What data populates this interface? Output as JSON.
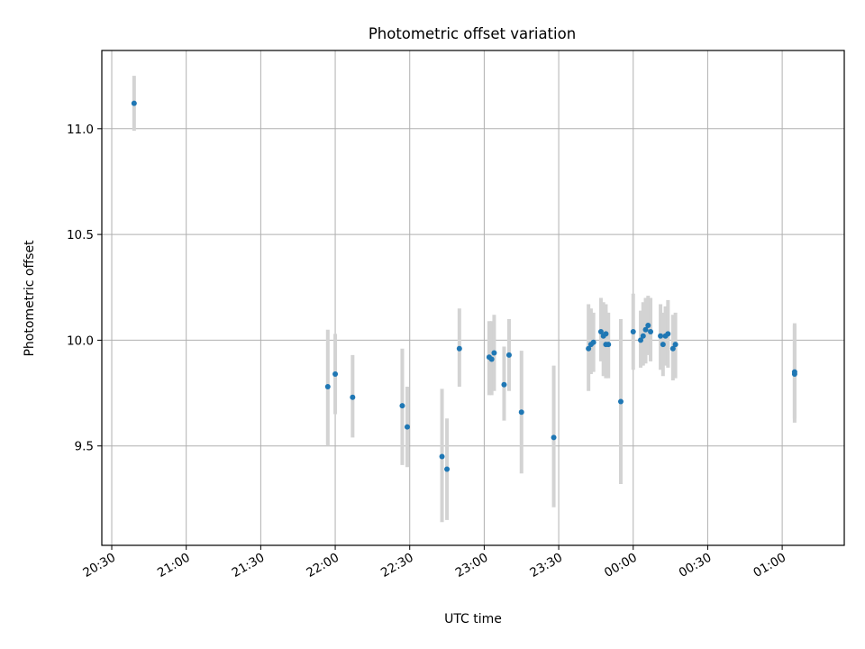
{
  "chart_data": {
    "type": "scatter",
    "title": "Photometric offset variation",
    "xlabel": "UTC time",
    "ylabel": "Photometric offset",
    "error_bars": true,
    "grid": true,
    "x_range": [
      "20:26",
      "01:25"
    ],
    "ylim": [
      9.03,
      11.37
    ],
    "x_ticks": [
      "20:30",
      "21:00",
      "21:30",
      "22:00",
      "22:30",
      "23:00",
      "23:30",
      "00:00",
      "00:30",
      "01:00"
    ],
    "y_ticks": [
      "9.5",
      "10.0",
      "10.5",
      "11.0"
    ],
    "colors": {
      "point": "#1f77b4",
      "error_bar": "#d3d3d3",
      "grid": "#b0b0b0",
      "axes": "#000000"
    },
    "points": [
      {
        "t": "20:39",
        "y": 11.12,
        "lo": 10.99,
        "hi": 11.25
      },
      {
        "t": "21:57",
        "y": 9.78,
        "lo": 9.5,
        "hi": 10.05
      },
      {
        "t": "22:00",
        "y": 9.84,
        "lo": 9.65,
        "hi": 10.03
      },
      {
        "t": "22:07",
        "y": 9.73,
        "lo": 9.54,
        "hi": 9.93
      },
      {
        "t": "22:27",
        "y": 9.69,
        "lo": 9.41,
        "hi": 9.96
      },
      {
        "t": "22:29",
        "y": 9.59,
        "lo": 9.4,
        "hi": 9.78
      },
      {
        "t": "22:43",
        "y": 9.45,
        "lo": 9.14,
        "hi": 9.77
      },
      {
        "t": "22:45",
        "y": 9.39,
        "lo": 9.15,
        "hi": 9.63
      },
      {
        "t": "22:50",
        "y": 9.96,
        "lo": 9.78,
        "hi": 10.15
      },
      {
        "t": "23:02",
        "y": 9.92,
        "lo": 9.74,
        "hi": 10.09
      },
      {
        "t": "23:03",
        "y": 9.91,
        "lo": 9.74,
        "hi": 10.09
      },
      {
        "t": "23:04",
        "y": 9.94,
        "lo": 9.76,
        "hi": 10.12
      },
      {
        "t": "23:08",
        "y": 9.79,
        "lo": 9.62,
        "hi": 9.97
      },
      {
        "t": "23:10",
        "y": 9.93,
        "lo": 9.76,
        "hi": 10.1
      },
      {
        "t": "23:15",
        "y": 9.66,
        "lo": 9.37,
        "hi": 9.95
      },
      {
        "t": "23:28",
        "y": 9.54,
        "lo": 9.21,
        "hi": 9.88
      },
      {
        "t": "23:42",
        "y": 9.96,
        "lo": 9.76,
        "hi": 10.17
      },
      {
        "t": "23:43",
        "y": 9.98,
        "lo": 9.84,
        "hi": 10.15
      },
      {
        "t": "23:44",
        "y": 9.99,
        "lo": 9.85,
        "hi": 10.13
      },
      {
        "t": "23:47",
        "y": 10.04,
        "lo": 9.9,
        "hi": 10.2
      },
      {
        "t": "23:48",
        "y": 10.02,
        "lo": 9.83,
        "hi": 10.18
      },
      {
        "t": "23:49",
        "y": 9.98,
        "lo": 9.82,
        "hi": 10.14
      },
      {
        "t": "23:49",
        "y": 10.03,
        "lo": 9.88,
        "hi": 10.17
      },
      {
        "t": "23:50",
        "y": 9.98,
        "lo": 9.82,
        "hi": 10.13
      },
      {
        "t": "23:55",
        "y": 9.71,
        "lo": 9.32,
        "hi": 10.1
      },
      {
        "t": "00:00",
        "y": 10.04,
        "lo": 9.86,
        "hi": 10.22
      },
      {
        "t": "00:03",
        "y": 10.0,
        "lo": 9.87,
        "hi": 10.14
      },
      {
        "t": "00:04",
        "y": 10.02,
        "lo": 9.88,
        "hi": 10.18
      },
      {
        "t": "00:05",
        "y": 10.05,
        "lo": 9.89,
        "hi": 10.2
      },
      {
        "t": "00:06",
        "y": 10.07,
        "lo": 9.93,
        "hi": 10.21
      },
      {
        "t": "00:07",
        "y": 10.04,
        "lo": 9.9,
        "hi": 10.2
      },
      {
        "t": "00:11",
        "y": 10.02,
        "lo": 9.86,
        "hi": 10.17
      },
      {
        "t": "00:12",
        "y": 9.98,
        "lo": 9.83,
        "hi": 10.13
      },
      {
        "t": "00:13",
        "y": 10.02,
        "lo": 9.88,
        "hi": 10.16
      },
      {
        "t": "00:14",
        "y": 10.03,
        "lo": 9.87,
        "hi": 10.19
      },
      {
        "t": "00:16",
        "y": 9.96,
        "lo": 9.81,
        "hi": 10.12
      },
      {
        "t": "00:17",
        "y": 9.98,
        "lo": 9.82,
        "hi": 10.13
      },
      {
        "t": "01:05",
        "y": 9.84,
        "lo": 9.61,
        "hi": 10.07
      },
      {
        "t": "01:05",
        "y": 9.85,
        "lo": 9.63,
        "hi": 10.08
      }
    ]
  }
}
